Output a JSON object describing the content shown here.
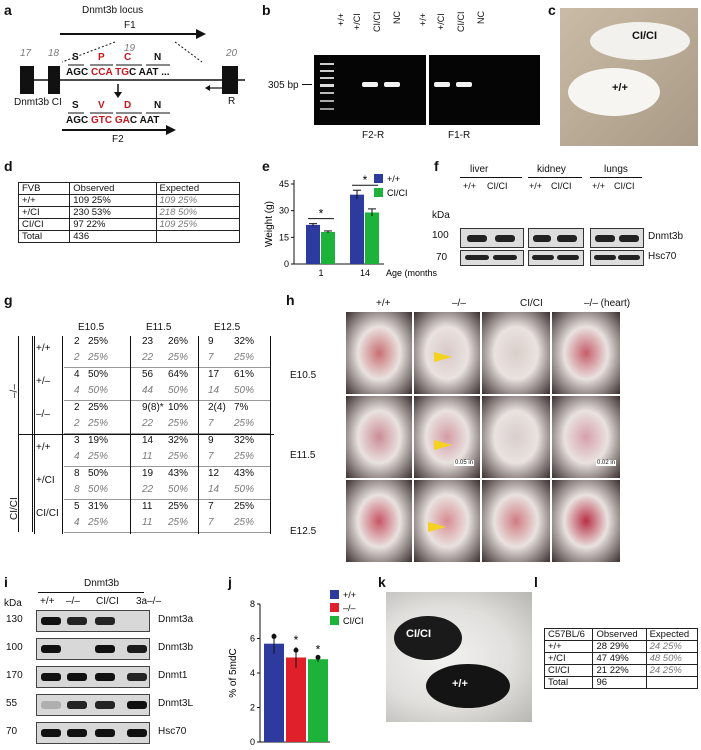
{
  "panels": {
    "a": "a",
    "b": "b",
    "c": "c",
    "d": "d",
    "e": "e",
    "f": "f",
    "g": "g",
    "h": "h",
    "i": "i",
    "j": "j",
    "k": "k",
    "l": "l"
  },
  "a": {
    "title": "Dnmt3b locus",
    "f1": "F1",
    "f2": "F2",
    "r": "R",
    "exons": [
      "17",
      "18",
      "19",
      "20"
    ],
    "allele": "Dnmt3b CI",
    "aa_top": [
      "S",
      "P",
      "C",
      "N"
    ],
    "aa_bottom": [
      "S",
      "V",
      "D",
      "N"
    ],
    "seq_top": {
      "a": "AGC",
      "b": "CCA",
      "c": "TG",
      "d": "C",
      "e": "AAT"
    },
    "seq_bottom": {
      "a": "AGC",
      "b": "GTC",
      "c": "GA",
      "d": "C",
      "e": "AAT"
    }
  },
  "b": {
    "lanes": [
      "+/+",
      "+/CI",
      "CI/CI",
      "NC",
      "+/+",
      "+/CI",
      "CI/CI",
      "NC"
    ],
    "size": "305 bp",
    "g1": "F2-R",
    "g2": "F1-R"
  },
  "c": {
    "top": "CI/CI",
    "bottom": "+/+"
  },
  "d": {
    "header": [
      "FVB",
      "Observed",
      "Expected"
    ],
    "rows": [
      {
        "g": "+/+",
        "o": "109  25%",
        "e": "109  25%"
      },
      {
        "g": "+/CI",
        "o": "230  53%",
        "e": "218  50%"
      },
      {
        "g": "CI/CI",
        "o": "97  22%",
        "e": "109  25%"
      },
      {
        "g": "Total",
        "o": "436",
        "e": ""
      }
    ]
  },
  "chart_data": {
    "type": "bar",
    "title": "",
    "ylabel": "Weight (g)",
    "xlabel": "Age (months)",
    "categories": [
      "1",
      "14"
    ],
    "ylim": [
      0,
      45
    ],
    "yticks": [
      "0",
      "15",
      "30",
      "45"
    ],
    "series": [
      {
        "name": "+/+",
        "values": [
          22,
          39
        ],
        "errors": [
          0.7,
          2.5
        ],
        "color": "#2d3a9e"
      },
      {
        "name": "CI/CI",
        "values": [
          18,
          29
        ],
        "errors": [
          0.6,
          2.0
        ],
        "color": "#1db33a"
      }
    ],
    "sig": "*",
    "legend": "top-right"
  },
  "f": {
    "tissues": [
      "liver",
      "kidney",
      "lungs"
    ],
    "genos": [
      "+/+",
      "CI/CI"
    ],
    "kda": "kDa",
    "markers": [
      "100",
      "70"
    ],
    "proteins": [
      "Dnmt3b",
      "Hsc70"
    ]
  },
  "g": {
    "cols": [
      "E10.5",
      "E11.5",
      "E12.5"
    ],
    "group1": "–/–",
    "group2": "CI/CI",
    "rows": [
      {
        "lab": "+/+",
        "obs": [
          "2",
          "25%",
          "23",
          "26%",
          "9",
          "32%"
        ],
        "exp": [
          "2",
          "25%",
          "22",
          "25%",
          "7",
          "25%"
        ]
      },
      {
        "lab": "+/–",
        "obs": [
          "4",
          "50%",
          "56",
          "64%",
          "17",
          "61%"
        ],
        "exp": [
          "4",
          "50%",
          "44",
          "50%",
          "14",
          "50%"
        ]
      },
      {
        "lab": "–/–",
        "obs": [
          "2",
          "25%",
          "9(8)*",
          "10%",
          "2(4)",
          "7%"
        ],
        "exp": [
          "2",
          "25%",
          "22",
          "25%",
          "7",
          "25%"
        ]
      },
      {
        "lab": "+/+",
        "obs": [
          "3",
          "19%",
          "14",
          "32%",
          "9",
          "32%"
        ],
        "exp": [
          "4",
          "25%",
          "11",
          "25%",
          "7",
          "25%"
        ]
      },
      {
        "lab": "+/CI",
        "obs": [
          "8",
          "50%",
          "19",
          "43%",
          "12",
          "43%"
        ],
        "exp": [
          "8",
          "50%",
          "22",
          "50%",
          "14",
          "50%"
        ]
      },
      {
        "lab": "CI/CI",
        "obs": [
          "5",
          "31%",
          "11",
          "25%",
          "7",
          "25%"
        ],
        "exp": [
          "4",
          "25%",
          "11",
          "25%",
          "7",
          "25%"
        ]
      }
    ]
  },
  "h": {
    "cols": [
      "+/+",
      "–/–",
      "CI/CI",
      "–/– (heart)"
    ],
    "rows": [
      "E10.5",
      "E11.5",
      "E12.5"
    ],
    "scale1": "0.05 in",
    "scale2": "0.02 in"
  },
  "i": {
    "group": "Dnmt3b",
    "lanes": [
      "+/+",
      "–/–",
      "CI/CI",
      "3a–/–"
    ],
    "kda": "kDa",
    "markers": [
      "130",
      "100",
      "170",
      "55",
      "70"
    ],
    "proteins": [
      "Dnmt3a",
      "Dnmt3b",
      "Dnmt1",
      "Dnmt3L",
      "Hsc70"
    ]
  },
  "j": {
    "ylabel": "% of 5mdC",
    "yticks": [
      "0",
      "2",
      "4",
      "6",
      "8"
    ],
    "ylim": [
      0,
      8
    ],
    "series": [
      {
        "name": "+/+",
        "value": 5.7,
        "error": 0.6,
        "color": "#2d3a9e"
      },
      {
        "name": "–/–",
        "value": 4.9,
        "error": 0.6,
        "color": "#e0202a"
      },
      {
        "name": "CI/CI",
        "value": 4.8,
        "error": 0.15,
        "color": "#1db33a"
      }
    ],
    "sig": "*"
  },
  "k": {
    "top": "CI/CI",
    "bottom": "+/+"
  },
  "l": {
    "header": [
      "C57BL/6",
      "Observed",
      "Expected"
    ],
    "rows": [
      {
        "g": "+/+",
        "o": "28  29%",
        "e": "24  25%"
      },
      {
        "g": "+/CI",
        "o": "47  49%",
        "e": "48  50%"
      },
      {
        "g": "CI/CI",
        "o": "21  22%",
        "e": "24  25%"
      },
      {
        "g": "Total",
        "o": "96",
        "e": ""
      }
    ]
  }
}
